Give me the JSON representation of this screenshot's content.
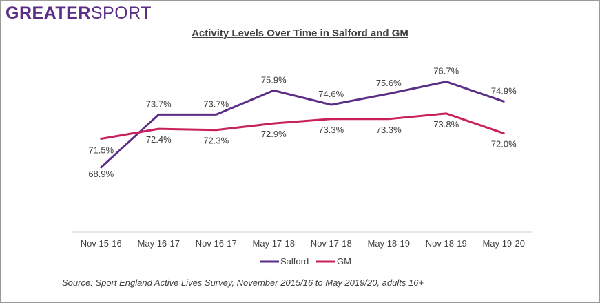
{
  "logo": {
    "part1": "GREATER",
    "part2": "SPORT"
  },
  "chart_data": {
    "type": "line",
    "title": "Activity Levels Over Time in Salford and GM",
    "categories": [
      "Nov 15-16",
      "May 16-17",
      "Nov 16-17",
      "May 17-18",
      "Nov 17-18",
      "May 18-19",
      "Nov 18-19",
      "May 19-20"
    ],
    "series": [
      {
        "name": "Salford",
        "color": "#5b2d86",
        "values": [
          68.9,
          73.7,
          73.7,
          75.9,
          74.6,
          75.6,
          76.7,
          74.9
        ],
        "labels": [
          "68.9%",
          "73.7%",
          "73.7%",
          "75.9%",
          "74.6%",
          "75.6%",
          "76.7%",
          "74.9%"
        ]
      },
      {
        "name": "GM",
        "color": "#c8215d",
        "values": [
          71.5,
          72.4,
          72.3,
          72.9,
          73.3,
          73.3,
          73.8,
          72.0
        ],
        "labels": [
          "71.5%",
          "72.4%",
          "72.3%",
          "72.9%",
          "73.3%",
          "73.3%",
          "73.8%",
          "72.0%"
        ]
      }
    ],
    "ylim": [
      63,
      80
    ],
    "grid": false,
    "legend_position": "bottom"
  },
  "source": "Source: Sport England Active Lives Survey, November 2015/16 to May 2019/20, adults 16+"
}
